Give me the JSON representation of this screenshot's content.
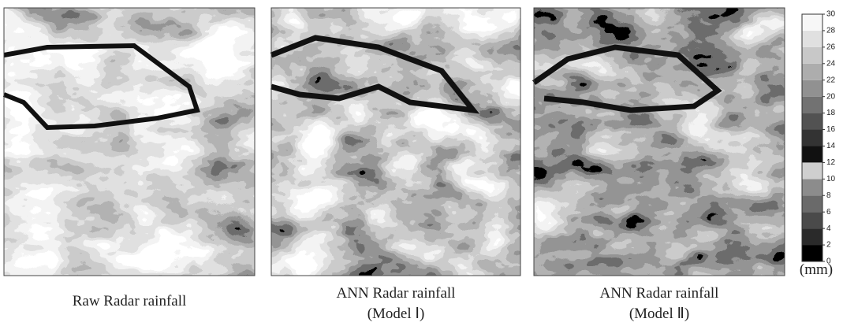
{
  "panels": [
    {
      "caption": [
        "Raw Radar rainfall"
      ]
    },
    {
      "caption": [
        "ANN Radar rainfall",
        "(Model Ⅰ)"
      ]
    },
    {
      "caption": [
        "ANN Radar rainfall",
        "(Model Ⅱ)"
      ]
    }
  ],
  "colorbar": {
    "ticks": [
      0,
      2,
      4,
      6,
      8,
      10,
      12,
      14,
      16,
      18,
      20,
      22,
      24,
      26,
      28,
      30
    ],
    "colors": [
      "#000000",
      "#2a2a2a",
      "#4a4a4a",
      "#6a6a6a",
      "#8c8c8c",
      "#cfcfcf",
      "#111111",
      "#333333",
      "#525252",
      "#727272",
      "#919191",
      "#adadad",
      "#c8c8c8",
      "#e0e0e0",
      "#f7f7f7"
    ],
    "unit": "(mm)"
  }
}
